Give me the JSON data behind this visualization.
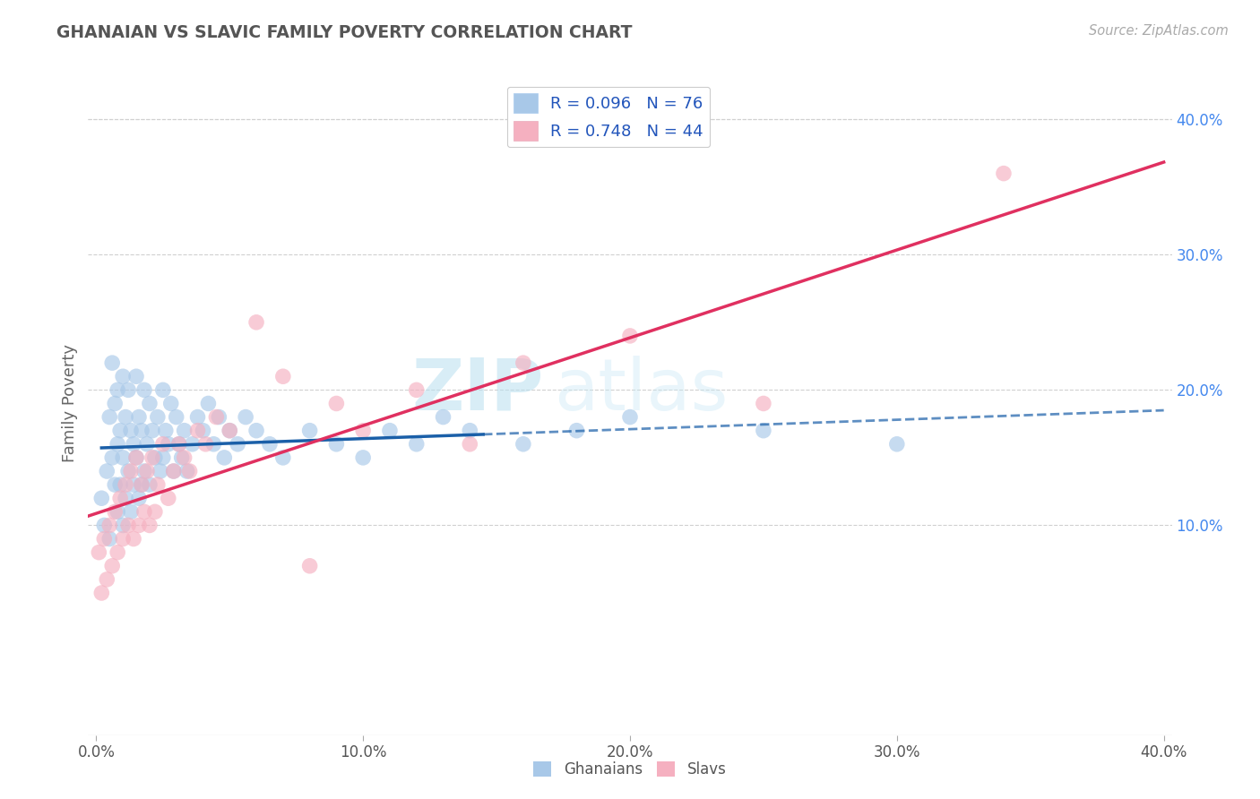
{
  "title": "GHANAIAN VS SLAVIC FAMILY POVERTY CORRELATION CHART",
  "source_text": "Source: ZipAtlas.com",
  "ylabel": "Family Poverty",
  "xlim": [
    -0.003,
    0.403
  ],
  "ylim": [
    -0.055,
    0.435
  ],
  "x_ticks": [
    0.0,
    0.1,
    0.2,
    0.3,
    0.4
  ],
  "x_tick_labels": [
    "0.0%",
    "10.0%",
    "20.0%",
    "30.0%",
    "40.0%"
  ],
  "y_ticks_right": [
    0.1,
    0.2,
    0.3,
    0.4
  ],
  "y_tick_labels_right": [
    "10.0%",
    "20.0%",
    "30.0%",
    "40.0%"
  ],
  "ghanaian_color": "#a8c8e8",
  "slavic_color": "#f5b0c0",
  "ghanaian_R": 0.096,
  "ghanaian_N": 76,
  "slavic_R": 0.748,
  "slavic_N": 44,
  "legend_label_1": "R = 0.096   N = 76",
  "legend_label_2": "R = 0.748   N = 44",
  "ghanaian_trend_color": "#1a5fa8",
  "slavic_trend_color": "#e03060",
  "ghanaian_scatter_x": [
    0.002,
    0.003,
    0.004,
    0.005,
    0.005,
    0.006,
    0.006,
    0.007,
    0.007,
    0.008,
    0.008,
    0.008,
    0.009,
    0.009,
    0.01,
    0.01,
    0.01,
    0.011,
    0.011,
    0.012,
    0.012,
    0.013,
    0.013,
    0.014,
    0.014,
    0.015,
    0.015,
    0.016,
    0.016,
    0.017,
    0.017,
    0.018,
    0.018,
    0.019,
    0.02,
    0.02,
    0.021,
    0.022,
    0.023,
    0.024,
    0.025,
    0.025,
    0.026,
    0.027,
    0.028,
    0.029,
    0.03,
    0.031,
    0.032,
    0.033,
    0.034,
    0.036,
    0.038,
    0.04,
    0.042,
    0.044,
    0.046,
    0.048,
    0.05,
    0.053,
    0.056,
    0.06,
    0.065,
    0.07,
    0.08,
    0.09,
    0.1,
    0.11,
    0.12,
    0.13,
    0.14,
    0.16,
    0.18,
    0.2,
    0.25,
    0.3
  ],
  "ghanaian_scatter_y": [
    0.12,
    0.1,
    0.14,
    0.18,
    0.09,
    0.22,
    0.15,
    0.19,
    0.13,
    0.16,
    0.2,
    0.11,
    0.17,
    0.13,
    0.21,
    0.15,
    0.1,
    0.18,
    0.12,
    0.2,
    0.14,
    0.17,
    0.11,
    0.16,
    0.13,
    0.21,
    0.15,
    0.18,
    0.12,
    0.17,
    0.13,
    0.2,
    0.14,
    0.16,
    0.19,
    0.13,
    0.17,
    0.15,
    0.18,
    0.14,
    0.2,
    0.15,
    0.17,
    0.16,
    0.19,
    0.14,
    0.18,
    0.16,
    0.15,
    0.17,
    0.14,
    0.16,
    0.18,
    0.17,
    0.19,
    0.16,
    0.18,
    0.15,
    0.17,
    0.16,
    0.18,
    0.17,
    0.16,
    0.15,
    0.17,
    0.16,
    0.15,
    0.17,
    0.16,
    0.18,
    0.17,
    0.16,
    0.17,
    0.18,
    0.17,
    0.16
  ],
  "slavic_scatter_x": [
    0.001,
    0.002,
    0.003,
    0.004,
    0.005,
    0.006,
    0.007,
    0.008,
    0.009,
    0.01,
    0.011,
    0.012,
    0.013,
    0.014,
    0.015,
    0.016,
    0.017,
    0.018,
    0.019,
    0.02,
    0.021,
    0.022,
    0.023,
    0.025,
    0.027,
    0.029,
    0.031,
    0.033,
    0.035,
    0.038,
    0.041,
    0.045,
    0.05,
    0.06,
    0.07,
    0.08,
    0.09,
    0.1,
    0.12,
    0.14,
    0.16,
    0.2,
    0.25,
    0.34
  ],
  "slavic_scatter_y": [
    0.08,
    0.05,
    0.09,
    0.06,
    0.1,
    0.07,
    0.11,
    0.08,
    0.12,
    0.09,
    0.13,
    0.1,
    0.14,
    0.09,
    0.15,
    0.1,
    0.13,
    0.11,
    0.14,
    0.1,
    0.15,
    0.11,
    0.13,
    0.16,
    0.12,
    0.14,
    0.16,
    0.15,
    0.14,
    0.17,
    0.16,
    0.18,
    0.17,
    0.25,
    0.21,
    0.07,
    0.19,
    0.17,
    0.2,
    0.16,
    0.22,
    0.24,
    0.19,
    0.36
  ],
  "watermark_zip": "ZIP",
  "watermark_atlas": "atlas",
  "background_color": "#ffffff",
  "grid_color": "#d0d0d0"
}
